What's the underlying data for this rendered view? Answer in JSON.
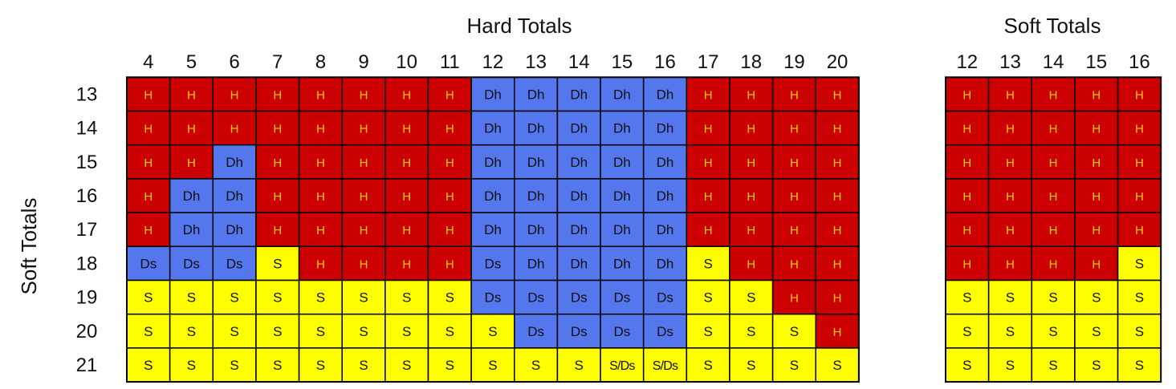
{
  "colors": {
    "H": "#cc0000",
    "Dh": "#5577ee",
    "Ds": "#5577ee",
    "S": "#ffff00",
    "S/Ds": "#ffff00",
    "grid": "#000000"
  },
  "chart_data": [
    {
      "type": "table",
      "title": "Hard Totals",
      "ylabel": "Soft Totals",
      "columns": [
        "4",
        "5",
        "6",
        "7",
        "8",
        "9",
        "10",
        "11",
        "12",
        "13",
        "14",
        "15",
        "16",
        "17",
        "18",
        "19",
        "20"
      ],
      "rows": [
        "13",
        "14",
        "15",
        "16",
        "17",
        "18",
        "19",
        "20",
        "21"
      ],
      "cells": [
        [
          "H",
          "H",
          "H",
          "H",
          "H",
          "H",
          "H",
          "H",
          "Dh",
          "Dh",
          "Dh",
          "Dh",
          "Dh",
          "H",
          "H",
          "H",
          "H"
        ],
        [
          "H",
          "H",
          "H",
          "H",
          "H",
          "H",
          "H",
          "H",
          "Dh",
          "Dh",
          "Dh",
          "Dh",
          "Dh",
          "H",
          "H",
          "H",
          "H"
        ],
        [
          "H",
          "H",
          "Dh",
          "H",
          "H",
          "H",
          "H",
          "H",
          "Dh",
          "Dh",
          "Dh",
          "Dh",
          "Dh",
          "H",
          "H",
          "H",
          "H"
        ],
        [
          "H",
          "Dh",
          "Dh",
          "H",
          "H",
          "H",
          "H",
          "H",
          "Dh",
          "Dh",
          "Dh",
          "Dh",
          "Dh",
          "H",
          "H",
          "H",
          "H"
        ],
        [
          "H",
          "Dh",
          "Dh",
          "H",
          "H",
          "H",
          "H",
          "H",
          "Dh",
          "Dh",
          "Dh",
          "Dh",
          "Dh",
          "H",
          "H",
          "H",
          "H"
        ],
        [
          "Ds",
          "Ds",
          "Ds",
          "S",
          "H",
          "H",
          "H",
          "H",
          "Ds",
          "Dh",
          "Dh",
          "Dh",
          "Dh",
          "S",
          "H",
          "H",
          "H"
        ],
        [
          "S",
          "S",
          "S",
          "S",
          "S",
          "S",
          "S",
          "S",
          "Ds",
          "Ds",
          "Ds",
          "Ds",
          "Ds",
          "S",
          "S",
          "H",
          "H"
        ],
        [
          "S",
          "S",
          "S",
          "S",
          "S",
          "S",
          "S",
          "S",
          "S",
          "Ds",
          "Ds",
          "Ds",
          "Ds",
          "S",
          "S",
          "S",
          "H"
        ],
        [
          "S",
          "S",
          "S",
          "S",
          "S",
          "S",
          "S",
          "S",
          "S",
          "S",
          "S",
          "S/Ds",
          "S/Ds",
          "S",
          "S",
          "S",
          "S"
        ]
      ]
    },
    {
      "type": "table",
      "title": "Soft Totals",
      "columns": [
        "12",
        "13",
        "14",
        "15",
        "16"
      ],
      "rows": [
        "13",
        "14",
        "15",
        "16",
        "17",
        "18",
        "19",
        "20",
        "21"
      ],
      "cells": [
        [
          "H",
          "H",
          "H",
          "H",
          "H"
        ],
        [
          "H",
          "H",
          "H",
          "H",
          "H"
        ],
        [
          "H",
          "H",
          "H",
          "H",
          "H"
        ],
        [
          "H",
          "H",
          "H",
          "H",
          "H"
        ],
        [
          "H",
          "H",
          "H",
          "H",
          "H"
        ],
        [
          "H",
          "H",
          "H",
          "H",
          "S"
        ],
        [
          "S",
          "S",
          "S",
          "S",
          "S"
        ],
        [
          "S",
          "S",
          "S",
          "S",
          "S"
        ],
        [
          "S",
          "S",
          "S",
          "S",
          "S"
        ]
      ]
    }
  ]
}
